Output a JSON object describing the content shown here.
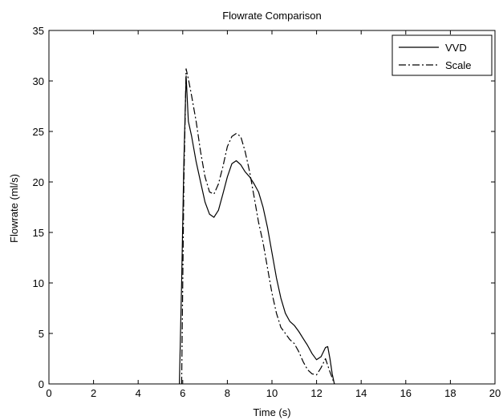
{
  "chart_data": {
    "type": "line",
    "title": "Flowrate Comparison",
    "xlabel": "Time (s)",
    "ylabel": "Flowrate (ml/s)",
    "xlim": [
      0,
      20
    ],
    "ylim": [
      0,
      35
    ],
    "xticks": [
      0,
      2,
      4,
      6,
      8,
      10,
      12,
      14,
      16,
      18,
      20
    ],
    "yticks": [
      0,
      5,
      10,
      15,
      20,
      25,
      30,
      35
    ],
    "grid": false,
    "legend_position": "top-right",
    "series": [
      {
        "name": "VVD",
        "line_style": "solid",
        "color": "#000000",
        "x": [
          5.85,
          5.95,
          6.05,
          6.15,
          6.25,
          6.4,
          6.6,
          6.8,
          7.0,
          7.2,
          7.4,
          7.6,
          7.8,
          8.0,
          8.2,
          8.4,
          8.6,
          8.8,
          9.0,
          9.2,
          9.4,
          9.6,
          9.8,
          10.0,
          10.2,
          10.4,
          10.6,
          10.8,
          11.0,
          11.2,
          11.4,
          11.6,
          11.8,
          12.0,
          12.2,
          12.4,
          12.5,
          12.6,
          12.7,
          12.8
        ],
        "y": [
          0,
          10,
          22,
          30.5,
          26,
          24.5,
          22,
          20,
          18,
          16.8,
          16.5,
          17.2,
          18.8,
          20.5,
          21.8,
          22.1,
          21.7,
          21,
          20.5,
          19.8,
          19,
          17.5,
          15.5,
          13,
          10.5,
          8.5,
          7,
          6.2,
          5.8,
          5.2,
          4.5,
          3.8,
          3.0,
          2.4,
          2.7,
          3.6,
          3.7,
          2.5,
          1.0,
          0
        ]
      },
      {
        "name": "Scale",
        "line_style": "dashdot",
        "color": "#000000",
        "x": [
          5.95,
          6.05,
          6.15,
          6.25,
          6.4,
          6.6,
          6.8,
          7.0,
          7.2,
          7.4,
          7.6,
          7.8,
          8.0,
          8.2,
          8.4,
          8.6,
          8.8,
          9.0,
          9.2,
          9.4,
          9.6,
          9.8,
          10.0,
          10.2,
          10.4,
          10.6,
          10.8,
          11.0,
          11.2,
          11.4,
          11.6,
          11.8,
          12.0,
          12.2,
          12.4,
          12.6,
          12.8
        ],
        "y": [
          0,
          20,
          31.2,
          30.2,
          28.5,
          26,
          23,
          20.5,
          19,
          18.8,
          19.8,
          21.5,
          23.5,
          24.5,
          24.8,
          24.5,
          23,
          21,
          18.5,
          16,
          14,
          11.5,
          9,
          7,
          5.6,
          5.0,
          4.4,
          4.0,
          3.2,
          2.2,
          1.4,
          1.0,
          0.9,
          1.6,
          2.5,
          1.2,
          0
        ]
      }
    ]
  }
}
